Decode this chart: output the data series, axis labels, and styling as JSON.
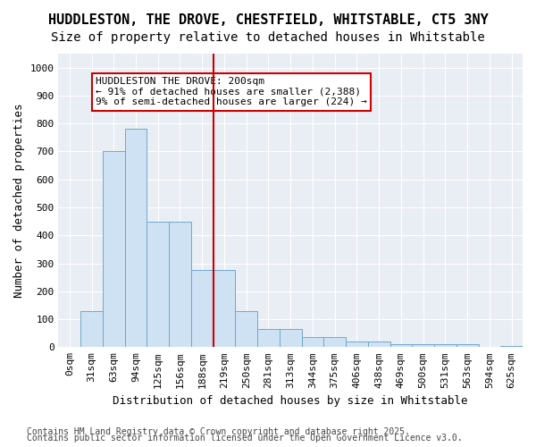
{
  "title_line1": "HUDDLESTON, THE DROVE, CHESTFIELD, WHITSTABLE, CT5 3NY",
  "title_line2": "Size of property relative to detached houses in Whitstable",
  "xlabel": "Distribution of detached houses by size in Whitstable",
  "ylabel": "Number of detached properties",
  "annotation_title": "HUDDLESTON THE DROVE: 200sqm",
  "annotation_line2": "← 91% of detached houses are smaller (2,388)",
  "annotation_line3": "9% of semi-detached houses are larger (224) →",
  "footnote1": "Contains HM Land Registry data © Crown copyright and database right 2025.",
  "footnote2": "Contains public sector information licensed under the Open Government Licence v3.0.",
  "bar_color": "#cfe2f3",
  "bar_edge_color": "#6fa8d0",
  "vline_color": "#cc0000",
  "vline_x": 6.5,
  "annotation_box_color": "#cc0000",
  "background_color": "#e8eef4",
  "categories": [
    "0sqm",
    "31sqm",
    "63sqm",
    "94sqm",
    "125sqm",
    "156sqm",
    "188sqm",
    "219sqm",
    "250sqm",
    "281sqm",
    "313sqm",
    "344sqm",
    "375sqm",
    "406sqm",
    "438sqm",
    "469sqm",
    "500sqm",
    "531sqm",
    "563sqm",
    "594sqm",
    "625sqm"
  ],
  "bar_values": [
    2,
    130,
    700,
    780,
    450,
    450,
    275,
    275,
    130,
    65,
    65,
    35,
    35,
    20,
    20,
    10,
    10,
    10,
    10,
    0,
    5
  ],
  "ylim": [
    0,
    1050
  ],
  "yticks": [
    0,
    100,
    200,
    300,
    400,
    500,
    600,
    700,
    800,
    900,
    1000
  ],
  "title_fontsize": 11,
  "subtitle_fontsize": 10,
  "axis_label_fontsize": 9,
  "tick_fontsize": 8,
  "annotation_fontsize": 8,
  "footnote_fontsize": 7
}
